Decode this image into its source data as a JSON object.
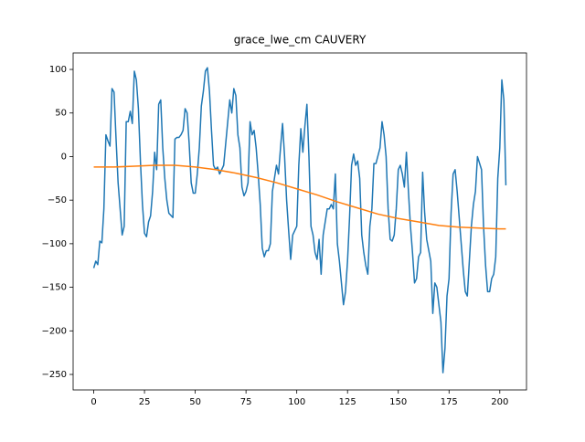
{
  "chart_data": {
    "type": "line",
    "title": "grace_lwe_cm CAUVERY",
    "xlim": [
      -10.15,
      213.15
    ],
    "ylim": [
      -267.8,
      118.9
    ],
    "xticks": [
      0,
      25,
      50,
      75,
      100,
      125,
      150,
      175,
      200
    ],
    "yticks": [
      {
        "value": -250,
        "label": "−250"
      },
      {
        "value": -200,
        "label": "−200"
      },
      {
        "value": -150,
        "label": "−150"
      },
      {
        "value": -100,
        "label": "−100"
      },
      {
        "value": -50,
        "label": "−50"
      },
      0,
      50,
      100
    ],
    "series": [
      {
        "color": "#1f77b4",
        "x": [
          0,
          1,
          2,
          3,
          4,
          5,
          6,
          7,
          8,
          9,
          10,
          11,
          12,
          14,
          15,
          16,
          17,
          18,
          19,
          20,
          21,
          22,
          23,
          24,
          25,
          26,
          27,
          28,
          29,
          30,
          31,
          32,
          33,
          34,
          35,
          36,
          37,
          39,
          40,
          41,
          42,
          43,
          44,
          45,
          46,
          47,
          48,
          49,
          50,
          51,
          52,
          53,
          54,
          55,
          56,
          57,
          58,
          59,
          60,
          61,
          62,
          64,
          65,
          66,
          67,
          68,
          69,
          70,
          71,
          72,
          73,
          74,
          75,
          76,
          77,
          78,
          79,
          80,
          81,
          82,
          83,
          84,
          85,
          86,
          87,
          88,
          90,
          91,
          92,
          93,
          94,
          95,
          96,
          97,
          98,
          99,
          100,
          101,
          102,
          103,
          104,
          105,
          106,
          107,
          108,
          109,
          110,
          111,
          112,
          113,
          115,
          116,
          117,
          118,
          119,
          120,
          121,
          122,
          123,
          124,
          125,
          126,
          127,
          128,
          129,
          130,
          131,
          132,
          133,
          134,
          135,
          136,
          137,
          138,
          139,
          141,
          142,
          143,
          144,
          145,
          146,
          147,
          148,
          149,
          150,
          151,
          152,
          153,
          154,
          155,
          156,
          157,
          158,
          159,
          160,
          161,
          162,
          163,
          164,
          166,
          167,
          168,
          169,
          170,
          171,
          172,
          173,
          174,
          175,
          176,
          177,
          178,
          179,
          180,
          181,
          182,
          183,
          184,
          185,
          186,
          187,
          188,
          189,
          191,
          192,
          193,
          194,
          195,
          196,
          197,
          198,
          199,
          200,
          201,
          202,
          203
        ],
        "values": [
          -128,
          -120,
          -124,
          -97,
          -99,
          -60,
          25,
          18,
          12,
          78,
          74,
          20,
          -30,
          -90,
          -80,
          40,
          40,
          52,
          38,
          98,
          88,
          55,
          -5,
          -55,
          -88,
          -92,
          -75,
          -68,
          -40,
          5,
          -15,
          60,
          65,
          10,
          -25,
          -50,
          -65,
          -70,
          20,
          22,
          22,
          25,
          30,
          55,
          50,
          15,
          -30,
          -42,
          -42,
          -20,
          10,
          58,
          75,
          98,
          102,
          75,
          30,
          -10,
          -15,
          -12,
          -20,
          -10,
          15,
          40,
          65,
          50,
          78,
          70,
          25,
          10,
          -35,
          -45,
          -40,
          -30,
          40,
          25,
          30,
          10,
          -20,
          -55,
          -105,
          -115,
          -108,
          -108,
          -100,
          -40,
          -10,
          -20,
          10,
          38,
          0,
          -50,
          -85,
          -118,
          -90,
          -85,
          -80,
          -10,
          32,
          5,
          35,
          60,
          0,
          -80,
          -90,
          -110,
          -118,
          -95,
          -135,
          -90,
          -60,
          -60,
          -55,
          -60,
          -20,
          -100,
          -120,
          -145,
          -170,
          -155,
          -120,
          -70,
          -10,
          3,
          -10,
          -5,
          -25,
          -90,
          -110,
          -125,
          -135,
          -80,
          -60,
          -8,
          -8,
          10,
          40,
          25,
          0,
          -60,
          -95,
          -97,
          -90,
          -60,
          -15,
          -10,
          -20,
          -35,
          5,
          -40,
          -80,
          -110,
          -145,
          -140,
          -115,
          -110,
          -18,
          -65,
          -95,
          -120,
          -180,
          -145,
          -150,
          -170,
          -190,
          -248,
          -220,
          -160,
          -140,
          -65,
          -20,
          -15,
          -40,
          -70,
          -100,
          -130,
          -155,
          -160,
          -120,
          -80,
          -55,
          -40,
          0,
          -15,
          -80,
          -125,
          -155,
          -155,
          -140,
          -135,
          -115,
          -25,
          10,
          88,
          65,
          -33
        ]
      },
      {
        "color": "#ff7f0e",
        "x": [
          0,
          10,
          20,
          30,
          40,
          50,
          60,
          70,
          80,
          90,
          100,
          110,
          120,
          130,
          140,
          150,
          160,
          170,
          180,
          190,
          200,
          203
        ],
        "values": [
          -12,
          -12,
          -11,
          -10,
          -10,
          -12,
          -15,
          -19,
          -24,
          -30,
          -37,
          -44,
          -52,
          -59,
          -66,
          -71,
          -75,
          -79,
          -81,
          -82,
          -83,
          -83
        ]
      }
    ]
  }
}
